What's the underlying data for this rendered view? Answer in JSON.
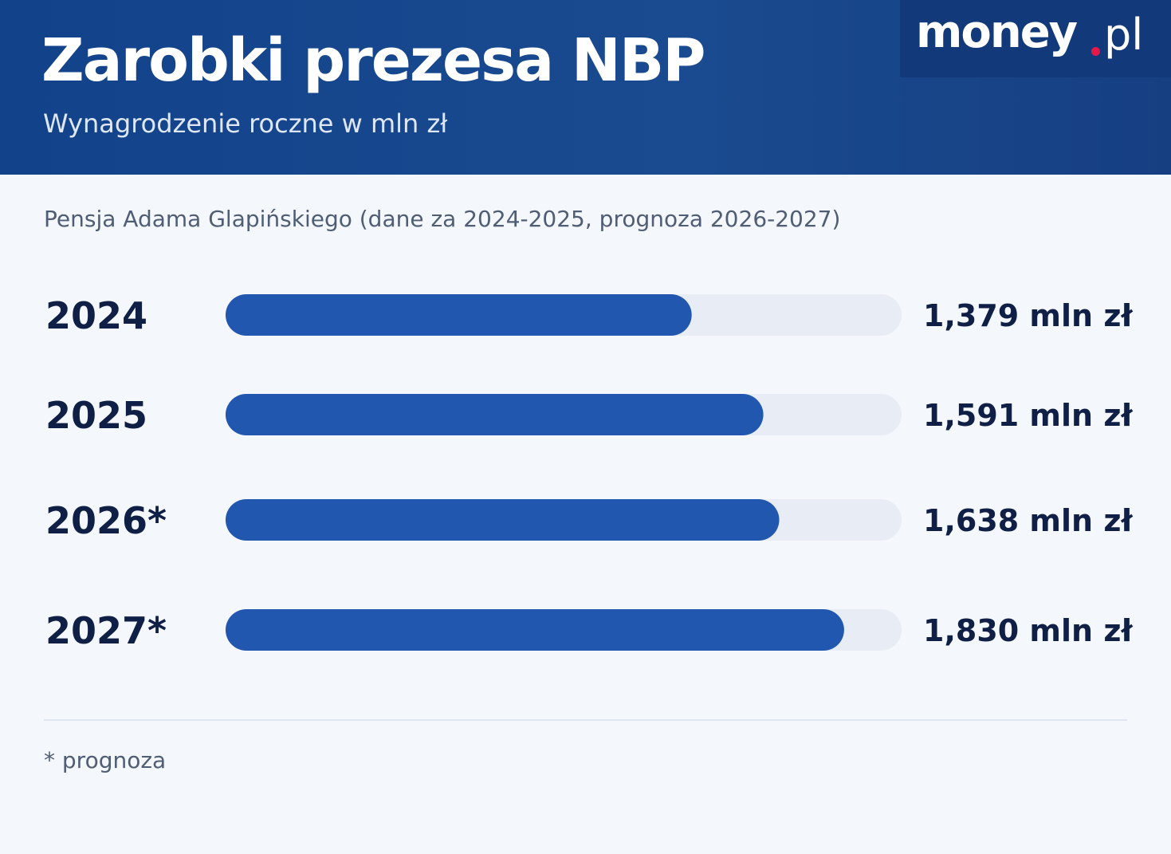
{
  "header": {
    "title": "Zarobki prezesa NBP",
    "subtitle": "Wynagrodzenie roczne w mln zł"
  },
  "logo": {
    "word": "money",
    "tld": "pl"
  },
  "colors": {
    "header_background": "#1a4a8f",
    "bar_fill": "#2257b0",
    "bar_track": "#e8edf5",
    "text_dark": "#0f1f45",
    "logo_dot": "#e8174a"
  },
  "chart_data": {
    "type": "bar",
    "orientation": "horizontal",
    "title": "Zarobki prezesa NBP",
    "subtitle": "Pensja Adama Glapińskiego (dane za 2024-2025, prognoza 2026-2027)",
    "categories": [
      "2024",
      "2025",
      "2026*",
      "2027*"
    ],
    "values": [
      1.379,
      1.591,
      1.638,
      1.83
    ],
    "value_labels": [
      "1,379 mln zł",
      "1,591 mln zł",
      "1,638 mln zł",
      "1,830 mln zł"
    ],
    "unit": "mln zł",
    "xlim": [
      0,
      2.0
    ],
    "grid": false,
    "legend": "none"
  },
  "footnote": "* prognoza"
}
